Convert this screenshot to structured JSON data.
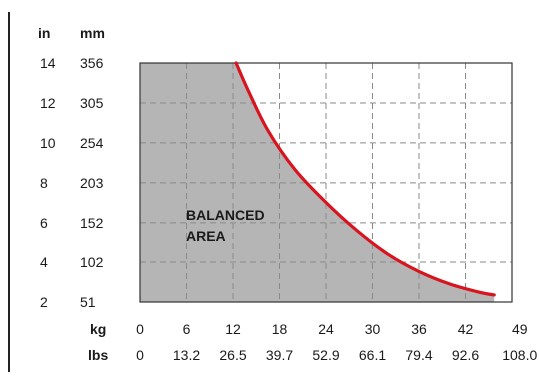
{
  "chart_data": {
    "type": "area",
    "y_units": {
      "in": "in",
      "mm": "mm"
    },
    "x_units": {
      "kg": "kg",
      "lbs": "lbs"
    },
    "y_ticks_in": [
      "14",
      "12",
      "10",
      "8",
      "6",
      "4",
      "2"
    ],
    "y_ticks_mm": [
      "356",
      "305",
      "254",
      "203",
      "152",
      "102",
      "51"
    ],
    "y_tick_values_mm": [
      356,
      305,
      254,
      203,
      152,
      102,
      51
    ],
    "x_ticks_kg": [
      "0",
      "6",
      "12",
      "18",
      "24",
      "30",
      "36",
      "42",
      "49"
    ],
    "x_ticks_lbs": [
      "0",
      "13.2",
      "26.5",
      "39.7",
      "52.9",
      "66.1",
      "79.4",
      "92.6",
      "108.0"
    ],
    "xlim_kg": [
      0,
      48
    ],
    "ylim_mm": [
      51,
      356
    ],
    "area_label": [
      "BALANCED",
      "AREA"
    ],
    "grid": true,
    "series": [
      {
        "boundary_kg_mm": [
          [
            12.4,
            356
          ],
          [
            14,
            320
          ],
          [
            16.5,
            270
          ],
          [
            20,
            220
          ],
          [
            24,
            178
          ],
          [
            28,
            142
          ],
          [
            32,
            112
          ],
          [
            36,
            90
          ],
          [
            40,
            74
          ],
          [
            44,
            63
          ],
          [
            45.7,
            60
          ]
        ]
      }
    ],
    "colors": {
      "curve": "#d8141e",
      "area": "#b5b5b5",
      "grid": "#8a8a8a",
      "axis": "#333333",
      "text": "#1a1a1a"
    }
  }
}
